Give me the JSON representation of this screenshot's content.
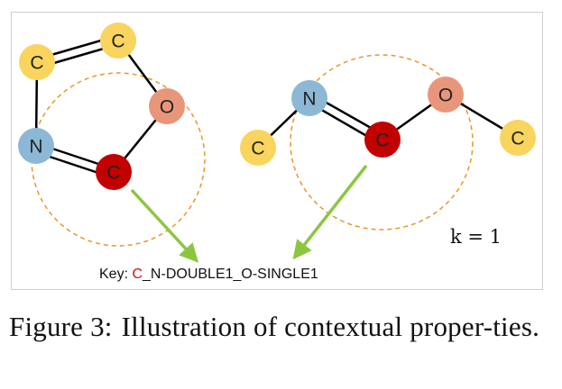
{
  "colors": {
    "carbon": "#f9d45e",
    "nitrogen": "#8cb8d6",
    "oxygen": "#e8967a",
    "center_carbon": "#c20000",
    "bond": "#000000",
    "context_circle": "#e8962a",
    "arrow": "#8cc63f",
    "key_highlight": "#c81414"
  },
  "molecule_left": {
    "atoms": [
      "C",
      "C",
      "O",
      "C",
      "N"
    ],
    "center_atom": "C"
  },
  "molecule_right": {
    "atoms": [
      "C",
      "N",
      "C",
      "O",
      "C"
    ],
    "center_atom": "C"
  },
  "key": {
    "prefix": "Key: ",
    "highlight": "C",
    "rest": "_N-DOUBLE1_O-SINGLE1"
  },
  "k_label": "k = 1",
  "caption": {
    "label": "Figure 3:",
    "text": "Illustration of contextual proper-ties."
  }
}
